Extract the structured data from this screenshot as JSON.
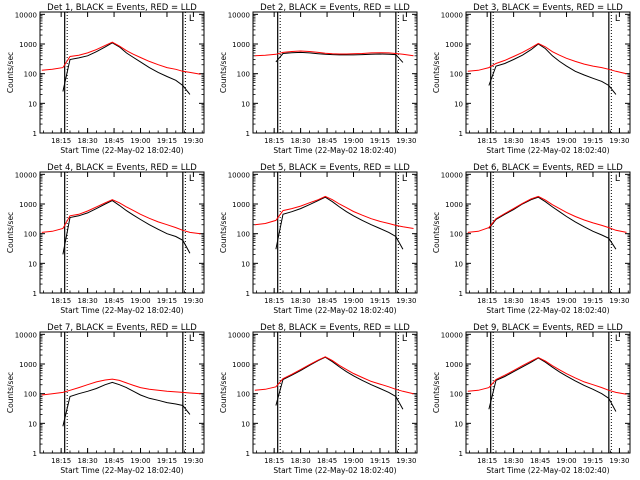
{
  "chart_data": [
    {
      "type": "line",
      "title": "Det 1, BLACK = Events, RED = LLD",
      "ylabel": "Counts/sec",
      "xlabel": "Start Time (22-May-02 18:02:40)",
      "xticks": [
        "18:15",
        "18:30",
        "18:45",
        "19:00",
        "19:15",
        "19:30"
      ],
      "yticks": [
        "1",
        "10",
        "100",
        "1000",
        "10000"
      ],
      "ylim": [
        1,
        12000
      ],
      "yscale": "log",
      "grid": false,
      "annotation": "L",
      "vlines": [
        "18:17",
        "19:24"
      ],
      "x": [
        "18:04",
        "18:10",
        "18:16",
        "18:20",
        "18:25",
        "18:30",
        "18:35",
        "18:40",
        "18:44",
        "18:48",
        "18:52",
        "18:56",
        "19:00",
        "19:05",
        "19:10",
        "19:15",
        "19:20",
        "19:24",
        "19:28",
        "19:34"
      ],
      "series": [
        {
          "name": "Events",
          "color": "#000000",
          "values": [
            null,
            null,
            25,
            300,
            340,
            400,
            550,
            800,
            1100,
            800,
            500,
            350,
            250,
            160,
            110,
            80,
            60,
            40,
            20,
            null
          ]
        },
        {
          "name": "LLD",
          "color": "#ff0000",
          "values": [
            130,
            140,
            160,
            380,
            420,
            500,
            650,
            900,
            1150,
            850,
            600,
            450,
            350,
            260,
            200,
            160,
            140,
            120,
            110,
            95
          ]
        }
      ]
    },
    {
      "type": "line",
      "title": "Det 2, BLACK = Events, RED = LLD",
      "ylabel": "Counts/sec",
      "xlabel": "Start Time (22-May-02 18:02:40)",
      "xticks": [
        "18:15",
        "18:30",
        "18:45",
        "19:00",
        "19:15",
        "19:30"
      ],
      "yticks": [
        "1",
        "10",
        "100",
        "1000",
        "10000"
      ],
      "ylim": [
        1,
        12000
      ],
      "yscale": "log",
      "grid": false,
      "annotation": "L",
      "vlines": [
        "18:17",
        "19:24"
      ],
      "x": [
        "18:04",
        "18:10",
        "18:16",
        "18:20",
        "18:25",
        "18:30",
        "18:35",
        "18:40",
        "18:44",
        "18:48",
        "18:52",
        "18:56",
        "19:00",
        "19:05",
        "19:10",
        "19:15",
        "19:20",
        "19:24",
        "19:28",
        "19:34"
      ],
      "series": [
        {
          "name": "Events",
          "color": "#000000",
          "values": [
            null,
            null,
            250,
            480,
            510,
            520,
            500,
            470,
            450,
            440,
            430,
            430,
            430,
            440,
            450,
            460,
            450,
            440,
            240,
            null
          ]
        },
        {
          "name": "LLD",
          "color": "#ff0000",
          "values": [
            400,
            420,
            450,
            520,
            560,
            580,
            560,
            520,
            490,
            470,
            460,
            460,
            470,
            480,
            500,
            510,
            500,
            480,
            450,
            400
          ]
        }
      ]
    },
    {
      "type": "line",
      "title": "Det 3, BLACK = Events, RED = LLD",
      "ylabel": "Counts/sec",
      "xlabel": "Start Time (22-May-02 18:02:40)",
      "xticks": [
        "18:15",
        "18:30",
        "18:45",
        "19:00",
        "19:15",
        "19:30"
      ],
      "yticks": [
        "1",
        "10",
        "100",
        "1000",
        "10000"
      ],
      "ylim": [
        1,
        12000
      ],
      "yscale": "log",
      "grid": false,
      "annotation": "L",
      "vlines": [
        "18:17",
        "19:24"
      ],
      "x": [
        "18:04",
        "18:10",
        "18:16",
        "18:20",
        "18:25",
        "18:30",
        "18:35",
        "18:40",
        "18:44",
        "18:48",
        "18:52",
        "18:56",
        "19:00",
        "19:05",
        "19:10",
        "19:15",
        "19:20",
        "19:24",
        "19:28",
        "19:34"
      ],
      "series": [
        {
          "name": "Events",
          "color": "#000000",
          "values": [
            null,
            null,
            40,
            180,
            220,
            300,
            420,
            650,
            1000,
            700,
            400,
            260,
            180,
            120,
            90,
            70,
            55,
            40,
            20,
            null
          ]
        },
        {
          "name": "LLD",
          "color": "#ff0000",
          "values": [
            120,
            130,
            160,
            220,
            280,
            380,
            520,
            750,
            1050,
            800,
            550,
            420,
            330,
            260,
            210,
            180,
            160,
            140,
            120,
            100
          ]
        }
      ]
    },
    {
      "type": "line",
      "title": "Det 4, BLACK = Events, RED = LLD",
      "ylabel": "Counts/sec",
      "xlabel": "Start Time (22-May-02 18:02:40)",
      "xticks": [
        "18:15",
        "18:30",
        "18:45",
        "19:00",
        "19:15",
        "19:30"
      ],
      "yticks": [
        "1",
        "10",
        "100",
        "1000",
        "10000"
      ],
      "ylim": [
        1,
        12000
      ],
      "yscale": "log",
      "grid": false,
      "annotation": "L",
      "vlines": [
        "18:17",
        "19:24"
      ],
      "x": [
        "18:04",
        "18:10",
        "18:16",
        "18:20",
        "18:25",
        "18:30",
        "18:35",
        "18:40",
        "18:44",
        "18:48",
        "18:52",
        "18:56",
        "19:00",
        "19:05",
        "19:10",
        "19:15",
        "19:20",
        "19:24",
        "19:28",
        "19:34"
      ],
      "series": [
        {
          "name": "Events",
          "color": "#000000",
          "values": [
            null,
            null,
            20,
            350,
            400,
            500,
            700,
            1000,
            1300,
            900,
            600,
            420,
            300,
            200,
            140,
            100,
            80,
            60,
            22,
            null
          ]
        },
        {
          "name": "LLD",
          "color": "#ff0000",
          "values": [
            110,
            120,
            150,
            400,
            450,
            580,
            800,
            1100,
            1400,
            1100,
            800,
            600,
            450,
            330,
            250,
            200,
            160,
            130,
            110,
            100
          ]
        }
      ]
    },
    {
      "type": "line",
      "title": "Det 5, BLACK = Events, RED = LLD",
      "ylabel": "Counts/sec",
      "xlabel": "Start Time (22-May-02 18:02:40)",
      "xticks": [
        "18:15",
        "18:30",
        "18:45",
        "19:00",
        "19:15",
        "19:30"
      ],
      "yticks": [
        "1",
        "10",
        "100",
        "1000",
        "10000"
      ],
      "ylim": [
        1,
        12000
      ],
      "yscale": "log",
      "grid": false,
      "annotation": "L",
      "vlines": [
        "18:17",
        "19:24"
      ],
      "x": [
        "18:04",
        "18:10",
        "18:16",
        "18:20",
        "18:25",
        "18:30",
        "18:35",
        "18:40",
        "18:44",
        "18:48",
        "18:52",
        "18:56",
        "19:00",
        "19:05",
        "19:10",
        "19:15",
        "19:20",
        "19:24",
        "19:28",
        "19:34"
      ],
      "series": [
        {
          "name": "Events",
          "color": "#000000",
          "values": [
            null,
            null,
            30,
            450,
            550,
            700,
            950,
            1300,
            1700,
            1200,
            800,
            550,
            400,
            280,
            200,
            150,
            110,
            80,
            30,
            null
          ]
        },
        {
          "name": "LLD",
          "color": "#ff0000",
          "values": [
            200,
            220,
            280,
            600,
            700,
            850,
            1100,
            1400,
            1800,
            1400,
            1000,
            750,
            560,
            420,
            320,
            260,
            220,
            190,
            170,
            150
          ]
        }
      ]
    },
    {
      "type": "line",
      "title": "Det 6, BLACK = Events, RED = LLD",
      "ylabel": "Counts/sec",
      "xlabel": "Start Time (22-May-02 18:02:40)",
      "xticks": [
        "18:15",
        "18:30",
        "18:45",
        "19:00",
        "19:15",
        "19:30"
      ],
      "yticks": [
        "1",
        "10",
        "100",
        "1000",
        "10000"
      ],
      "ylim": [
        1,
        12000
      ],
      "yscale": "log",
      "grid": false,
      "annotation": "L",
      "vlines": [
        "18:17",
        "19:24"
      ],
      "x": [
        "18:04",
        "18:10",
        "18:16",
        "18:20",
        "18:25",
        "18:30",
        "18:35",
        "18:40",
        "18:44",
        "18:48",
        "18:52",
        "18:56",
        "19:00",
        "19:05",
        "19:10",
        "19:15",
        "19:20",
        "19:24",
        "19:28",
        "19:34"
      ],
      "series": [
        {
          "name": "Events",
          "color": "#000000",
          "values": [
            null,
            null,
            150,
            300,
            450,
            650,
            1000,
            1400,
            1700,
            1200,
            800,
            550,
            380,
            250,
            170,
            120,
            90,
            70,
            30,
            null
          ]
        },
        {
          "name": "LLD",
          "color": "#ff0000",
          "values": [
            110,
            120,
            160,
            320,
            480,
            700,
            1050,
            1500,
            1800,
            1350,
            950,
            700,
            520,
            380,
            290,
            230,
            190,
            160,
            130,
            110
          ]
        }
      ]
    },
    {
      "type": "line",
      "title": "Det 7, BLACK = Events, RED = LLD",
      "ylabel": "Counts/sec",
      "xlabel": "Start Time (22-May-02 18:02:40)",
      "xticks": [
        "18:15",
        "18:30",
        "18:45",
        "19:00",
        "19:15",
        "19:30"
      ],
      "yticks": [
        "1",
        "10",
        "100",
        "1000",
        "10000"
      ],
      "ylim": [
        1,
        12000
      ],
      "yscale": "log",
      "grid": false,
      "annotation": "L",
      "vlines": [
        "18:17",
        "19:24"
      ],
      "x": [
        "18:04",
        "18:10",
        "18:16",
        "18:20",
        "18:25",
        "18:30",
        "18:35",
        "18:40",
        "18:44",
        "18:48",
        "18:52",
        "18:56",
        "19:00",
        "19:05",
        "19:10",
        "19:15",
        "19:20",
        "19:24",
        "19:28",
        "19:34"
      ],
      "series": [
        {
          "name": "Events",
          "color": "#000000",
          "values": [
            null,
            null,
            8,
            80,
            100,
            120,
            150,
            200,
            240,
            200,
            160,
            120,
            90,
            70,
            60,
            50,
            45,
            40,
            20,
            null
          ]
        },
        {
          "name": "LLD",
          "color": "#ff0000",
          "values": [
            90,
            100,
            110,
            130,
            160,
            200,
            250,
            290,
            310,
            280,
            230,
            190,
            160,
            140,
            130,
            120,
            115,
            110,
            105,
            100
          ]
        }
      ]
    },
    {
      "type": "line",
      "title": "Det 8, BLACK = Events, RED = LLD",
      "ylabel": "Counts/sec",
      "xlabel": "Start Time (22-May-02 18:02:40)",
      "xticks": [
        "18:15",
        "18:30",
        "18:45",
        "19:00",
        "19:15",
        "19:30"
      ],
      "yticks": [
        "1",
        "10",
        "100",
        "1000",
        "10000"
      ],
      "ylim": [
        1,
        12000
      ],
      "yscale": "log",
      "grid": false,
      "annotation": "L",
      "vlines": [
        "18:17",
        "19:24"
      ],
      "x": [
        "18:04",
        "18:10",
        "18:16",
        "18:20",
        "18:25",
        "18:30",
        "18:35",
        "18:40",
        "18:44",
        "18:48",
        "18:52",
        "18:56",
        "19:00",
        "19:05",
        "19:10",
        "19:15",
        "19:20",
        "19:24",
        "19:28",
        "19:34"
      ],
      "series": [
        {
          "name": "Events",
          "color": "#000000",
          "values": [
            null,
            null,
            40,
            300,
            420,
            600,
            900,
            1300,
            1700,
            1200,
            800,
            550,
            400,
            280,
            200,
            150,
            110,
            80,
            30,
            null
          ]
        },
        {
          "name": "LLD",
          "color": "#ff0000",
          "values": [
            130,
            140,
            170,
            320,
            450,
            650,
            950,
            1350,
            1750,
            1300,
            900,
            650,
            480,
            350,
            260,
            210,
            170,
            140,
            120,
            100
          ]
        }
      ]
    },
    {
      "type": "line",
      "title": "Det 9, BLACK = Events, RED = LLD",
      "ylabel": "Counts/sec",
      "xlabel": "Start Time (22-May-02 18:02:40)",
      "xticks": [
        "18:15",
        "18:30",
        "18:45",
        "19:00",
        "19:15",
        "19:30"
      ],
      "yticks": [
        "1",
        "10",
        "100",
        "1000",
        "10000"
      ],
      "ylim": [
        1,
        12000
      ],
      "yscale": "log",
      "grid": false,
      "annotation": "L",
      "vlines": [
        "18:17",
        "19:24"
      ],
      "x": [
        "18:04",
        "18:10",
        "18:16",
        "18:20",
        "18:25",
        "18:30",
        "18:35",
        "18:40",
        "18:44",
        "18:48",
        "18:52",
        "18:56",
        "19:00",
        "19:05",
        "19:10",
        "19:15",
        "19:20",
        "19:24",
        "19:28",
        "19:34"
      ],
      "series": [
        {
          "name": "Events",
          "color": "#000000",
          "values": [
            null,
            null,
            30,
            280,
            380,
            550,
            800,
            1150,
            1600,
            1150,
            780,
            540,
            390,
            270,
            190,
            140,
            100,
            70,
            25,
            null
          ]
        },
        {
          "name": "LLD",
          "color": "#ff0000",
          "values": [
            120,
            130,
            160,
            300,
            420,
            600,
            880,
            1250,
            1650,
            1250,
            880,
            640,
            470,
            340,
            250,
            200,
            160,
            130,
            110,
            95
          ]
        }
      ]
    }
  ]
}
